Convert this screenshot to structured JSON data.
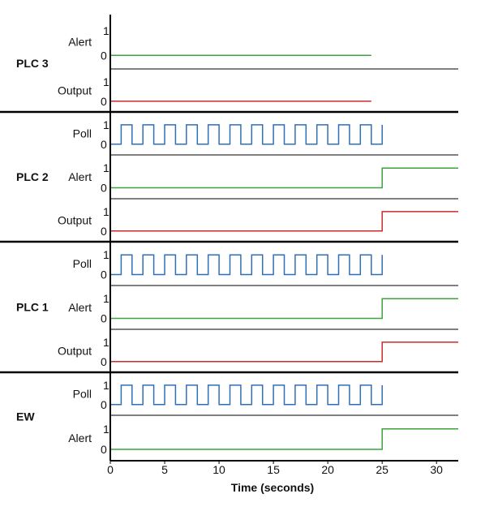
{
  "chart_data": {
    "type": "line",
    "title": "",
    "xlabel": "Time (seconds)",
    "xlim": [
      0,
      32
    ],
    "xticks": [
      0,
      5,
      10,
      15,
      20,
      25,
      30
    ],
    "colors": {
      "Poll": "#2f6fba",
      "Alert": "#3aa33a",
      "Output": "#cc2b2b",
      "axis": "#000000",
      "divider": "#000000"
    },
    "groups": [
      {
        "name": "PLC 3",
        "traces": [
          {
            "label": "Alert",
            "kind": "Alert",
            "low": "0",
            "high": "1",
            "steps": [
              [
                0,
                0
              ],
              [
                24,
                0
              ]
            ]
          },
          {
            "label": "Output",
            "kind": "Output",
            "low": "0",
            "high": "1",
            "steps": [
              [
                0,
                0
              ],
              [
                24,
                0
              ]
            ]
          }
        ]
      },
      {
        "name": "PLC 2",
        "traces": [
          {
            "label": "Poll",
            "kind": "Poll",
            "low": "0",
            "high": "1",
            "pulse": {
              "start": 1,
              "period": 2,
              "width": 1,
              "end": 25
            }
          },
          {
            "label": "Alert",
            "kind": "Alert",
            "low": "0",
            "high": "1",
            "steps": [
              [
                0,
                0
              ],
              [
                25,
                0
              ],
              [
                25,
                1
              ],
              [
                32,
                1
              ]
            ]
          },
          {
            "label": "Output",
            "kind": "Output",
            "low": "0",
            "high": "1",
            "steps": [
              [
                0,
                0
              ],
              [
                25,
                0
              ],
              [
                25,
                1
              ],
              [
                32,
                1
              ]
            ]
          }
        ]
      },
      {
        "name": "PLC 1",
        "traces": [
          {
            "label": "Poll",
            "kind": "Poll",
            "low": "0",
            "high": "1",
            "pulse": {
              "start": 1,
              "period": 2,
              "width": 1,
              "end": 25
            }
          },
          {
            "label": "Alert",
            "kind": "Alert",
            "low": "0",
            "high": "1",
            "steps": [
              [
                0,
                0
              ],
              [
                25,
                0
              ],
              [
                25,
                1
              ],
              [
                32,
                1
              ]
            ]
          },
          {
            "label": "Output",
            "kind": "Output",
            "low": "0",
            "high": "1",
            "steps": [
              [
                0,
                0
              ],
              [
                25,
                0
              ],
              [
                25,
                1
              ],
              [
                32,
                1
              ]
            ]
          }
        ]
      },
      {
        "name": "EW",
        "traces": [
          {
            "label": "Poll",
            "kind": "Poll",
            "low": "0",
            "high": "1",
            "pulse": {
              "start": 1,
              "period": 2,
              "width": 1,
              "end": 25
            }
          },
          {
            "label": "Alert",
            "kind": "Alert",
            "low": "0",
            "high": "1",
            "steps": [
              [
                0,
                0
              ],
              [
                25,
                0
              ],
              [
                25,
                1
              ],
              [
                32,
                1
              ]
            ]
          }
        ]
      }
    ]
  }
}
